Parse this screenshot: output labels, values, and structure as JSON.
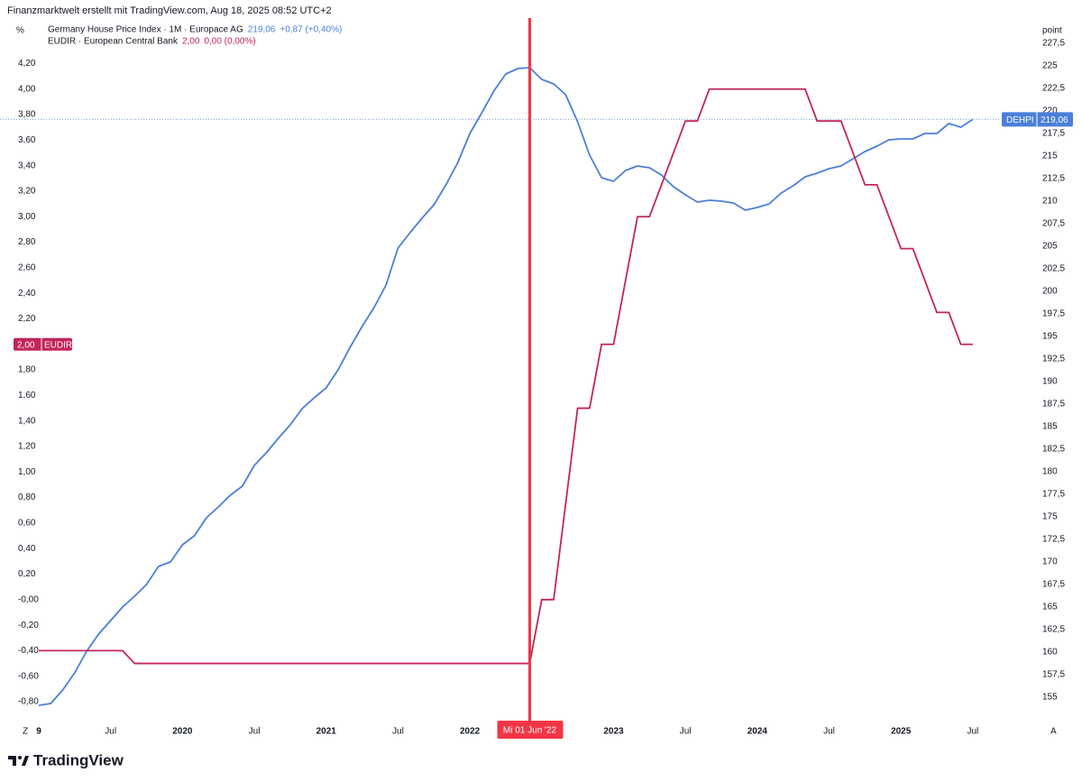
{
  "chart_data": {
    "type": "line",
    "title": "Finanzmarktwelt erstellt mit TradingView.com, Aug 18, 2025 08:52 UTC+2",
    "ylabel": "%",
    "y2label": "point",
    "corner_left": "Z",
    "corner_right": "A",
    "brand": "TradingView",
    "crosshair": {
      "x": "2022-06",
      "label": "Mi 01 Jun '22"
    },
    "xlim": [
      "2019-01",
      "2025-11"
    ],
    "xticks": [
      {
        "value": "2019-01",
        "label": "9"
      },
      {
        "value": "2019-07",
        "label": "Jul"
      },
      {
        "value": "2020-01",
        "label": "2020"
      },
      {
        "value": "2020-07",
        "label": "Jul"
      },
      {
        "value": "2021-01",
        "label": "2021"
      },
      {
        "value": "2021-07",
        "label": "Jul"
      },
      {
        "value": "2022-01",
        "label": "2022"
      },
      {
        "value": "2023-01",
        "label": "2023"
      },
      {
        "value": "2023-07",
        "label": "Jul"
      },
      {
        "value": "2024-01",
        "label": "2024"
      },
      {
        "value": "2024-07",
        "label": "Jul"
      },
      {
        "value": "2025-01",
        "label": "2025"
      },
      {
        "value": "2025-07",
        "label": "Jul"
      }
    ],
    "ylim": [
      -0.92,
      4.5
    ],
    "yticks": [
      {
        "value": 4.2,
        "label": "4,20"
      },
      {
        "value": 4.0,
        "label": "4,00"
      },
      {
        "value": 3.8,
        "label": "3,80"
      },
      {
        "value": 3.6,
        "label": "3,60"
      },
      {
        "value": 3.4,
        "label": "3,40"
      },
      {
        "value": 3.2,
        "label": "3,20"
      },
      {
        "value": 3.0,
        "label": "3,00"
      },
      {
        "value": 2.8,
        "label": "2,80"
      },
      {
        "value": 2.6,
        "label": "2,60"
      },
      {
        "value": 2.4,
        "label": "2,40"
      },
      {
        "value": 2.2,
        "label": "2,20"
      },
      {
        "value": 1.8,
        "label": "1,80"
      },
      {
        "value": 1.6,
        "label": "1,60"
      },
      {
        "value": 1.4,
        "label": "1,40"
      },
      {
        "value": 1.2,
        "label": "1,20"
      },
      {
        "value": 1.0,
        "label": "1,00"
      },
      {
        "value": 0.8,
        "label": "0,80"
      },
      {
        "value": 0.6,
        "label": "0,60"
      },
      {
        "value": 0.4,
        "label": "0,40"
      },
      {
        "value": 0.2,
        "label": "0,20"
      },
      {
        "value": 0,
        "label": "-0,00"
      },
      {
        "value": -0.2,
        "label": "-0,20"
      },
      {
        "value": -0.4,
        "label": "-0,40"
      },
      {
        "value": -0.6,
        "label": "-0,60"
      },
      {
        "value": -0.8,
        "label": "-0,80"
      }
    ],
    "y2lim": [
      152.8,
      229.5
    ],
    "y2ticks": [
      {
        "value": 227.5,
        "label": "227,5"
      },
      225,
      {
        "value": 222.5,
        "label": "222,5"
      },
      220,
      {
        "value": 217.5,
        "label": "217,5"
      },
      215,
      {
        "value": 212.5,
        "label": "212,5"
      },
      210,
      {
        "value": 207.5,
        "label": "207,5"
      },
      205,
      {
        "value": 202.5,
        "label": "202,5"
      },
      200,
      {
        "value": 197.5,
        "label": "197,5"
      },
      195,
      {
        "value": 192.5,
        "label": "192,5"
      },
      190,
      {
        "value": 187.5,
        "label": "187,5"
      },
      185,
      {
        "value": 182.5,
        "label": "182,5"
      },
      180,
      {
        "value": 177.5,
        "label": "177,5"
      },
      175,
      {
        "value": 172.5,
        "label": "172,5"
      },
      170,
      {
        "value": 167.5,
        "label": "167,5"
      },
      165,
      {
        "value": 162.5,
        "label": "162,5"
      },
      160,
      {
        "value": 157.5,
        "label": "157,5"
      },
      155
    ],
    "grid": false,
    "x": [
      "2019-01",
      "2019-02",
      "2019-03",
      "2019-04",
      "2019-05",
      "2019-06",
      "2019-07",
      "2019-08",
      "2019-09",
      "2019-10",
      "2019-11",
      "2019-12",
      "2020-01",
      "2020-02",
      "2020-03",
      "2020-04",
      "2020-05",
      "2020-06",
      "2020-07",
      "2020-08",
      "2020-09",
      "2020-10",
      "2020-11",
      "2020-12",
      "2021-01",
      "2021-02",
      "2021-03",
      "2021-04",
      "2021-05",
      "2021-06",
      "2021-07",
      "2021-08",
      "2021-09",
      "2021-10",
      "2021-11",
      "2021-12",
      "2022-01",
      "2022-02",
      "2022-03",
      "2022-04",
      "2022-05",
      "2022-06",
      "2022-07",
      "2022-08",
      "2022-09",
      "2022-10",
      "2022-11",
      "2022-12",
      "2023-01",
      "2023-02",
      "2023-03",
      "2023-04",
      "2023-05",
      "2023-06",
      "2023-07",
      "2023-08",
      "2023-09",
      "2023-10",
      "2023-11",
      "2023-12",
      "2024-01",
      "2024-02",
      "2024-03",
      "2024-04",
      "2024-05",
      "2024-06",
      "2024-07",
      "2024-08",
      "2024-09",
      "2024-10",
      "2024-11",
      "2024-12",
      "2025-01",
      "2025-02",
      "2025-03",
      "2025-04",
      "2025-05",
      "2025-06",
      "2025-07"
    ],
    "series": [
      {
        "name": "Germany House Price Index · 1M · Europace AG",
        "tag": "DEHPI",
        "last_label": "219,06",
        "change_label": "+0,87 (+0,40%)",
        "color": "#4a7fd9",
        "axis": "y2",
        "values": [
          154.1,
          154.3,
          155.8,
          157.7,
          160.1,
          162.0,
          163.5,
          165.0,
          166.2,
          167.5,
          169.5,
          170.0,
          171.9,
          172.9,
          174.9,
          176.1,
          177.4,
          178.4,
          180.7,
          182.1,
          183.7,
          185.2,
          187.0,
          188.2,
          189.3,
          191.3,
          193.8,
          196.1,
          198.2,
          200.7,
          204.8,
          206.5,
          208.1,
          209.6,
          211.8,
          214.3,
          217.5,
          219.8,
          222.2,
          224.1,
          224.7,
          224.8,
          223.5,
          223.0,
          221.8,
          218.8,
          215.1,
          212.6,
          212.2,
          213.4,
          213.9,
          213.7,
          212.9,
          211.6,
          210.7,
          209.9,
          210.1,
          210.0,
          209.8,
          209.0,
          209.3,
          209.7,
          210.9,
          211.7,
          212.7,
          213.1,
          213.6,
          213.9,
          214.7,
          215.5,
          216.1,
          216.8,
          216.9,
          216.9,
          217.5,
          217.5,
          218.6,
          218.2,
          219.06
        ]
      },
      {
        "name": "EUDIR · European Central Bank",
        "tag": "EUDIR",
        "last_label": "2,00",
        "change_label": "0,00 (0,00%)",
        "color": "#c2255c",
        "axis": "y",
        "values": [
          -0.4,
          -0.4,
          -0.4,
          -0.4,
          -0.4,
          -0.4,
          -0.4,
          -0.4,
          -0.5,
          -0.5,
          -0.5,
          -0.5,
          -0.5,
          -0.5,
          -0.5,
          -0.5,
          -0.5,
          -0.5,
          -0.5,
          -0.5,
          -0.5,
          -0.5,
          -0.5,
          -0.5,
          -0.5,
          -0.5,
          -0.5,
          -0.5,
          -0.5,
          -0.5,
          -0.5,
          -0.5,
          -0.5,
          -0.5,
          -0.5,
          -0.5,
          -0.5,
          -0.5,
          -0.5,
          -0.5,
          -0.5,
          -0.5,
          0,
          0,
          0.75,
          1.5,
          1.5,
          2.0,
          2.0,
          2.5,
          3.0,
          3.0,
          3.25,
          3.5,
          3.75,
          3.75,
          4.0,
          4.0,
          4.0,
          4.0,
          4.0,
          4.0,
          4.0,
          4.0,
          4.0,
          3.75,
          3.75,
          3.75,
          3.5,
          3.25,
          3.25,
          3.0,
          2.75,
          2.75,
          2.5,
          2.25,
          2.25,
          2.0,
          2.0
        ]
      }
    ]
  }
}
